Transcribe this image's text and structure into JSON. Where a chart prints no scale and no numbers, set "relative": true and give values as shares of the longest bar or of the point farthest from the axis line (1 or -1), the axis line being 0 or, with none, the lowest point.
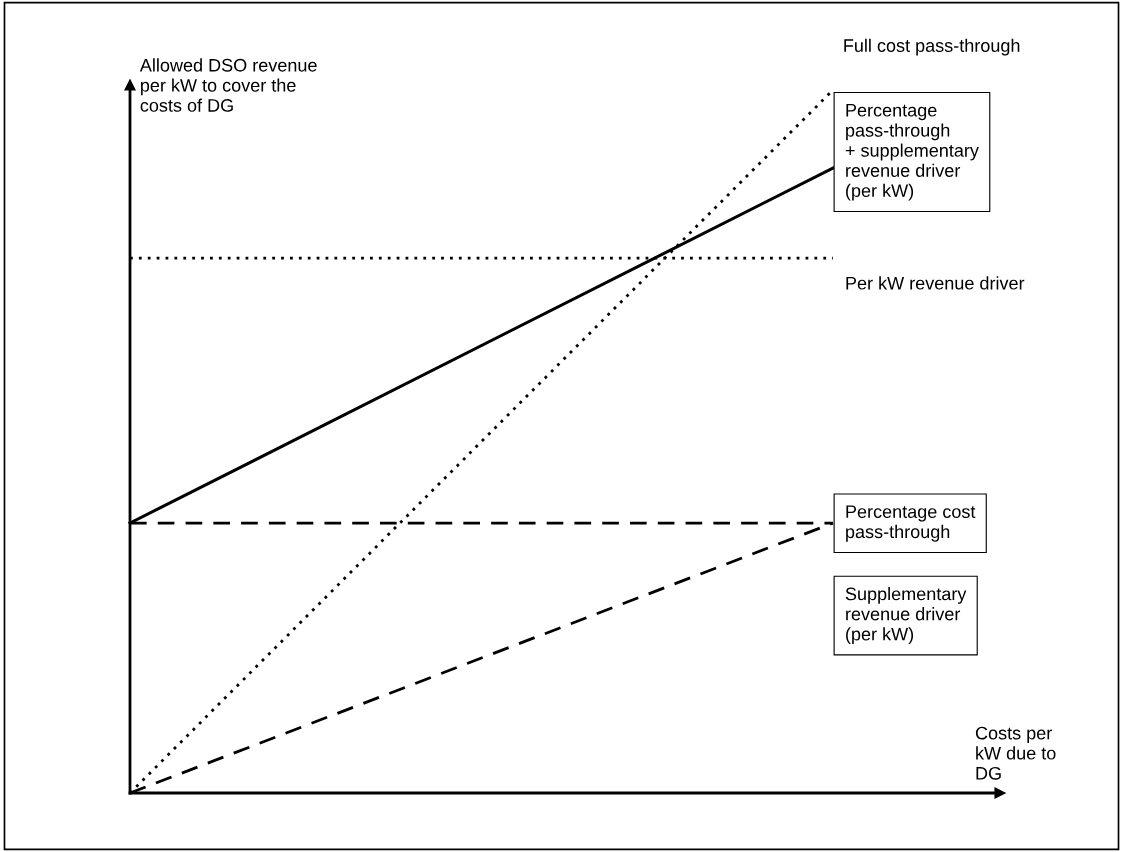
{
  "chart_data": {
    "type": "line",
    "relative": true,
    "xlabel": "Costs per\nkW due to\nDG",
    "ylabel": "Allowed DSO revenue\nper kW to cover the\ncosts of DG",
    "categories": [
      null,
      null
    ],
    "series": [
      {
        "name": "Full cost pass-through",
        "color": "#000000",
        "values": [
          0,
          1
        ],
        "line_style": "dotted"
      },
      {
        "name": "Percentage\npass-through\n+ supplementary\nrevenue driver\n(per kW)",
        "color": "#000000",
        "values": [
          0.384,
          0.889
        ],
        "line_style": "solid"
      },
      {
        "name": "Per kW revenue driver",
        "color": "#000000",
        "values": [
          0.761,
          0.761
        ],
        "line_style": "dotted"
      },
      {
        "name": "Percentage cost\npass-through",
        "color": "#000000",
        "values": [
          0,
          0.384
        ],
        "line_style": "dashed"
      },
      {
        "name": "Supplementary\nrevenue driver\n(per kW)",
        "color": "#000000",
        "values": [
          0.384,
          0.384
        ],
        "line_style": "dashed"
      }
    ],
    "tick_labels": false
  }
}
